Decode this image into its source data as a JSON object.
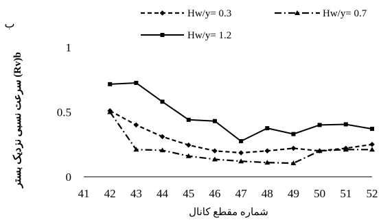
{
  "panel_label": "ب",
  "chart_data": {
    "type": "line",
    "title": "",
    "xlabel": "شماره مقطع کانال",
    "ylabel": "سرعت نسبی نزدیک بستر (Rv)b",
    "x": [
      41,
      42,
      43,
      44,
      45,
      46,
      47,
      48,
      49,
      50,
      51,
      52
    ],
    "xticks": [
      "41",
      "42",
      "43",
      "44",
      "45",
      "46",
      "47",
      "48",
      "49",
      "50",
      "51",
      "52"
    ],
    "xlim": [
      41,
      52
    ],
    "yticks": [
      "0",
      "0.5",
      "1"
    ],
    "ylim": [
      0,
      1
    ],
    "grid": false,
    "legend_position": "top",
    "series": [
      {
        "name": "Hw/y= 0.3",
        "style": "dashed-diamond",
        "color": "#000000",
        "x": [
          42,
          43,
          44,
          45,
          46,
          47,
          48,
          49,
          50,
          51,
          52
        ],
        "values": [
          0.51,
          0.4,
          0.31,
          0.245,
          0.2,
          0.185,
          0.2,
          0.22,
          0.2,
          0.22,
          0.25
        ]
      },
      {
        "name": "Hw/y= 0.7",
        "style": "dashdot-triangle",
        "color": "#000000",
        "x": [
          42,
          43,
          44,
          45,
          46,
          47,
          48,
          49,
          50,
          51,
          52
        ],
        "values": [
          0.5,
          0.21,
          0.205,
          0.16,
          0.135,
          0.12,
          0.11,
          0.105,
          0.2,
          0.21,
          0.21
        ]
      },
      {
        "name": "Hw/y= 1.2",
        "style": "solid-square",
        "color": "#000000",
        "x": [
          42,
          43,
          44,
          45,
          46,
          47,
          48,
          49,
          50,
          51,
          52
        ],
        "values": [
          0.715,
          0.725,
          0.58,
          0.44,
          0.43,
          0.275,
          0.375,
          0.33,
          0.4,
          0.405,
          0.37
        ]
      }
    ]
  }
}
